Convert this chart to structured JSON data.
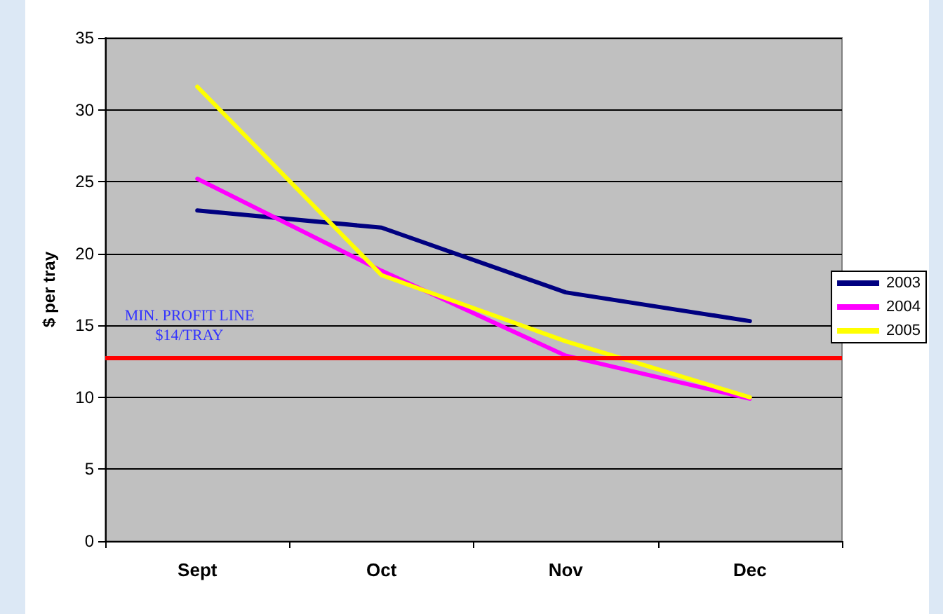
{
  "chart_data": {
    "type": "line",
    "ylabel": "$ per tray",
    "categories": [
      "Sept",
      "Oct",
      "Nov",
      "Dec"
    ],
    "series": [
      {
        "name": "2003",
        "color": "#000080",
        "values": [
          23,
          21.8,
          17.3,
          15.3
        ]
      },
      {
        "name": "2004",
        "color": "#ff00ff",
        "values": [
          25.2,
          18.8,
          12.9,
          9.9
        ]
      },
      {
        "name": "2005",
        "color": "#ffff00",
        "values": [
          31.6,
          18.5,
          13.9,
          10
        ]
      }
    ],
    "ylim": [
      0,
      35
    ],
    "yticks": [
      0,
      5,
      10,
      15,
      20,
      25,
      30,
      35
    ],
    "grid": "y",
    "legend": "right",
    "marker": "none",
    "line_style": "solid",
    "ref_lines": [
      {
        "axis": "y",
        "value": 12.7,
        "label": "MIN. PROFIT LINE\n$14/TRAY",
        "color": "#ff0000"
      }
    ]
  }
}
